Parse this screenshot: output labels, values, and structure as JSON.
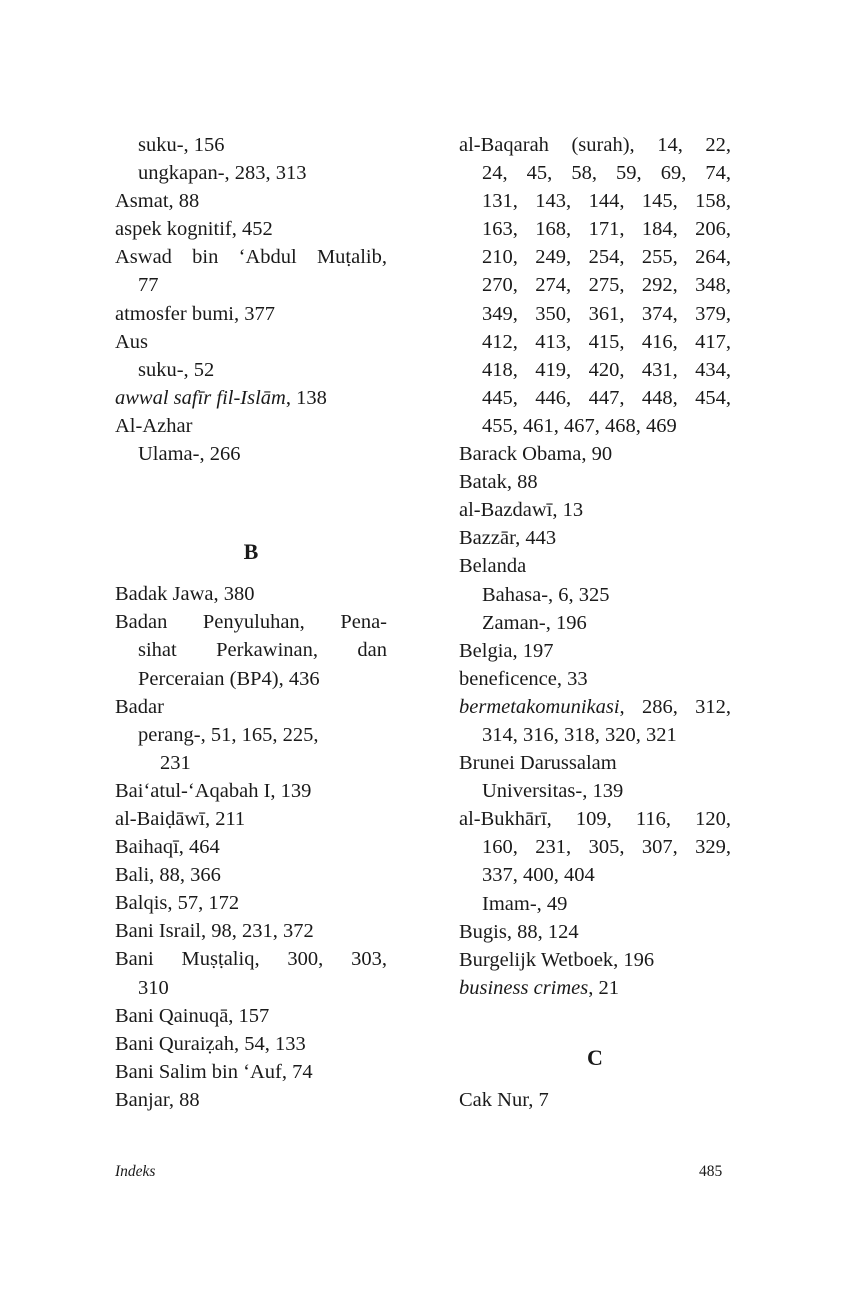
{
  "columns": [
    [
      {
        "t": "suku-, 156",
        "i": 1
      },
      {
        "t": "ungkapan-, 283, 313",
        "i": 1
      },
      {
        "t": "Asmat, 88"
      },
      {
        "t": "aspek kognitif, 452"
      },
      {
        "t": "Aswad bin ‘Abdul Muṭalib,",
        "j": true
      },
      {
        "t": "77",
        "i": 1
      },
      {
        "t": "atmosfer bumi, 377"
      },
      {
        "t": "Aus"
      },
      {
        "t": "suku-, 52",
        "i": 1
      },
      {
        "it": "awwal safīr fil-Islām",
        "t": ", 138"
      },
      {
        "t": "Al-Azhar"
      },
      {
        "t": "Ulama-, 266",
        "i": 1
      },
      {
        "t": ""
      },
      {
        "t": "B",
        "h": true,
        "gap": true
      },
      {
        "t": "Badak Jawa, 380"
      },
      {
        "t": "Badan Penyuluhan, Pena-",
        "j": true
      },
      {
        "t": "sihat Perkawinan, dan",
        "i": 1,
        "j": true
      },
      {
        "t": "Perceraian (BP4), 436",
        "i": 1
      },
      {
        "t": "Badar"
      },
      {
        "t": "perang-, 51, 165, 225,",
        "i": 1
      },
      {
        "t": "231",
        "i": 2
      },
      {
        "t": "Bai‘atul-‘Aqabah I, 139"
      },
      {
        "t": "al-Baiḍāwī, 211"
      },
      {
        "t": "Baihaqī, 464"
      },
      {
        "t": "Bali, 88, 366"
      },
      {
        "t": "Balqis, 57, 172"
      },
      {
        "t": "Bani Israil, 98, 231, 372"
      },
      {
        "t": "Bani Muṣṭaliq, 300, 303,",
        "j": true
      },
      {
        "t": "310",
        "i": 1
      },
      {
        "t": "Bani Qainuqā, 157"
      },
      {
        "t": "Bani Quraiẓah, 54, 133"
      },
      {
        "t": "Bani Salim bin ‘Auf, 74"
      },
      {
        "t": "Banjar, 88"
      }
    ],
    [
      {
        "t": "al-Baqarah (surah), 14, 22,",
        "j": true
      },
      {
        "t": "24, 45, 58, 59, 69, 74,",
        "i": 1,
        "j": true
      },
      {
        "t": "131, 143, 144, 145, 158,",
        "i": 1,
        "j": true
      },
      {
        "t": "163, 168, 171, 184, 206,",
        "i": 1,
        "j": true
      },
      {
        "t": "210, 249, 254, 255, 264,",
        "i": 1,
        "j": true
      },
      {
        "t": "270, 274, 275, 292, 348,",
        "i": 1,
        "j": true
      },
      {
        "t": "349, 350, 361, 374, 379,",
        "i": 1,
        "j": true
      },
      {
        "t": "412, 413, 415, 416, 417,",
        "i": 1,
        "j": true
      },
      {
        "t": "418, 419, 420, 431, 434,",
        "i": 1,
        "j": true
      },
      {
        "t": "445, 446, 447, 448, 454,",
        "i": 1,
        "j": true
      },
      {
        "t": "455, 461, 467, 468, 469",
        "i": 1
      },
      {
        "t": "Barack Obama, 90"
      },
      {
        "t": "Batak, 88"
      },
      {
        "t": "al-Bazdawī, 13"
      },
      {
        "t": "Bazzār, 443"
      },
      {
        "t": "Belanda"
      },
      {
        "t": "Bahasa-, 6, 325",
        "i": 1
      },
      {
        "t": "Zaman-, 196",
        "i": 1
      },
      {
        "t": "Belgia, 197"
      },
      {
        "t": "beneficence, 33"
      },
      {
        "it": "bermetakomunikasi",
        "t": ", 286, 312,",
        "j": true
      },
      {
        "t": "314, 316, 318, 320, 321",
        "i": 1
      },
      {
        "t": "Brunei Darussalam"
      },
      {
        "t": "Universitas-, 139",
        "i": 1
      },
      {
        "t": "al-Bukhārī, 109, 116, 120,",
        "j": true
      },
      {
        "t": "160, 231, 305, 307, 329,",
        "i": 1,
        "j": true
      },
      {
        "t": "337, 400, 404",
        "i": 1
      },
      {
        "t": "Imam-, 49",
        "i": 1
      },
      {
        "t": "Bugis, 88, 124"
      },
      {
        "t": "Burgelijk Wetboek, 196"
      },
      {
        "it": "business crimes",
        "t": ", 21"
      },
      {
        "t": "C",
        "h": true,
        "gap": true
      },
      {
        "t": "Cak Nur, 7"
      }
    ]
  ],
  "footer": {
    "section": "Indeks",
    "page": "485"
  }
}
